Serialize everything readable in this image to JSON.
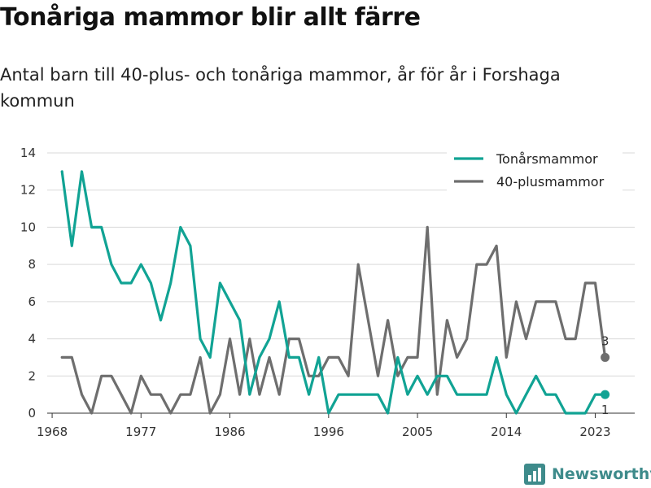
{
  "title": "Tonåriga mammor blir allt färre",
  "subtitle": "Antal barn till 40-plus- och tonåriga mammor, år för år i Forshaga kommun",
  "brand": "Newsworthy",
  "colors": {
    "teen": "#11a394",
    "forty": "#6e6e6e",
    "grid": "#d9d9d9"
  },
  "chart_data": {
    "type": "line",
    "title": "Tonåriga mammor blir allt färre",
    "subtitle": "Antal barn till 40-plus- och tonåriga mammor, år för år i Forshaga kommun",
    "xlabel": "",
    "ylabel": "",
    "x": [
      1969,
      1970,
      1971,
      1972,
      1973,
      1974,
      1975,
      1976,
      1977,
      1978,
      1979,
      1980,
      1981,
      1982,
      1983,
      1984,
      1985,
      1986,
      1987,
      1988,
      1989,
      1990,
      1991,
      1992,
      1993,
      1994,
      1995,
      1996,
      1997,
      1998,
      1999,
      2000,
      2001,
      2002,
      2003,
      2004,
      2005,
      2006,
      2007,
      2008,
      2009,
      2010,
      2011,
      2012,
      2013,
      2014,
      2015,
      2016,
      2017,
      2018,
      2019,
      2020,
      2021,
      2022,
      2023,
      2024
    ],
    "xticks": [
      "1968",
      "1977",
      "1986",
      "1996",
      "2005",
      "2014",
      "2023"
    ],
    "xtick_values": [
      1968,
      1977,
      1986,
      1996,
      2005,
      2014,
      2023
    ],
    "yticks": [
      "0",
      "2",
      "4",
      "6",
      "8",
      "10",
      "12",
      "14"
    ],
    "ylim": [
      0,
      14
    ],
    "xlim": [
      1967.5,
      2027
    ],
    "grid": true,
    "legend_position": "top-right",
    "series": [
      {
        "name": "Tonårsmammor",
        "color": "#11a394",
        "values": [
          13,
          9,
          13,
          10,
          10,
          8,
          7,
          7,
          8,
          7,
          5,
          7,
          10,
          9,
          4,
          3,
          7,
          6,
          5,
          1,
          3,
          4,
          6,
          3,
          3,
          1,
          3,
          0,
          1,
          1,
          1,
          1,
          1,
          0,
          3,
          1,
          2,
          1,
          2,
          2,
          1,
          1,
          1,
          1,
          3,
          1,
          0,
          1,
          2,
          1,
          1,
          0,
          0,
          0,
          1,
          1
        ],
        "end_label": "1"
      },
      {
        "name": "40-plusmammor",
        "color": "#6e6e6e",
        "values": [
          3,
          3,
          1,
          0,
          2,
          2,
          1,
          0,
          2,
          1,
          1,
          0,
          1,
          1,
          3,
          0,
          1,
          4,
          1,
          4,
          1,
          3,
          1,
          4,
          4,
          2,
          2,
          3,
          3,
          2,
          8,
          5,
          2,
          5,
          2,
          3,
          3,
          10,
          1,
          5,
          3,
          4,
          8,
          8,
          9,
          3,
          6,
          4,
          6,
          6,
          6,
          4,
          4,
          7,
          7,
          3
        ],
        "end_label": "3"
      }
    ]
  }
}
